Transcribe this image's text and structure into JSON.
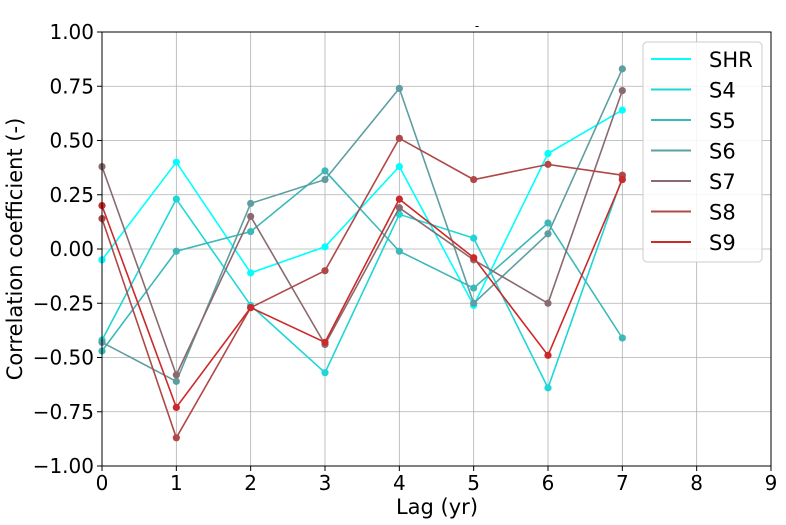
{
  "chart_data": {
    "type": "line",
    "title": "-",
    "xlabel": "Lag (yr)",
    "ylabel": "Correlation coefficient (-)",
    "xlim": [
      0,
      9
    ],
    "ylim": [
      -1.0,
      1.0
    ],
    "x_ticks": [
      "0",
      "1",
      "2",
      "3",
      "4",
      "5",
      "6",
      "7",
      "8",
      "9"
    ],
    "y_ticks": [
      "−1.00",
      "−0.75",
      "−0.50",
      "−0.25",
      "0.00",
      "0.25",
      "0.50",
      "0.75",
      "1.00"
    ],
    "grid": true,
    "legend_position": "top-right",
    "x": [
      0,
      1,
      2,
      3,
      4,
      5,
      6,
      7
    ],
    "series": [
      {
        "name": "SHR",
        "color": "#00ffff",
        "values": [
          -0.05,
          0.4,
          -0.11,
          0.01,
          0.38,
          -0.26,
          0.44,
          0.64
        ]
      },
      {
        "name": "S4",
        "color": "#1fd6d6",
        "values": [
          -0.42,
          0.23,
          -0.26,
          -0.57,
          0.16,
          0.05,
          -0.64,
          0.33
        ]
      },
      {
        "name": "S5",
        "color": "#3cb8b8",
        "values": [
          -0.47,
          -0.01,
          0.08,
          0.36,
          -0.01,
          -0.18,
          0.12,
          -0.41
        ]
      },
      {
        "name": "S6",
        "color": "#5f9ea0",
        "values": [
          -0.43,
          -0.61,
          0.21,
          0.32,
          0.74,
          -0.25,
          0.07,
          0.83
        ]
      },
      {
        "name": "S7",
        "color": "#8a6a6e",
        "values": [
          0.38,
          -0.58,
          0.15,
          -0.44,
          0.19,
          -0.05,
          -0.25,
          0.73
        ]
      },
      {
        "name": "S8",
        "color": "#b04848",
        "values": [
          0.14,
          -0.87,
          -0.27,
          -0.1,
          0.51,
          0.32,
          0.39,
          0.34
        ]
      },
      {
        "name": "S9",
        "color": "#cc2a2a",
        "values": [
          0.2,
          -0.73,
          -0.27,
          -0.43,
          0.23,
          -0.04,
          -0.49,
          0.32
        ]
      }
    ]
  }
}
